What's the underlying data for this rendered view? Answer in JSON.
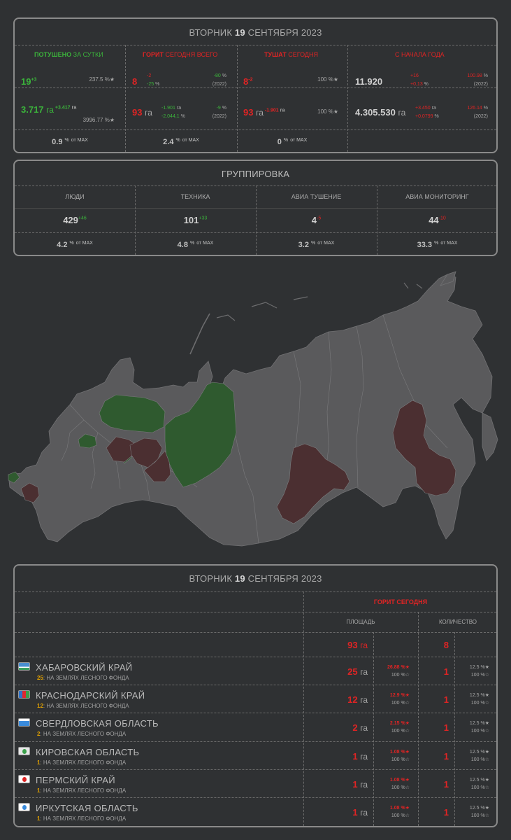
{
  "header": {
    "weekday": "ВТОРНИК",
    "day": "19",
    "month_year": "СЕНТЯБРЯ 2023"
  },
  "summary": {
    "col1": {
      "title_a": "ПОТУШЕНО",
      "title_b": "ЗА СУТКИ"
    },
    "col2": {
      "title_a": "ГОРИТ",
      "title_b": "СЕГОДНЯ ВСЕГО"
    },
    "col3": {
      "title_a": "ТУШАТ",
      "title_b": "СЕГОДНЯ"
    },
    "col4": {
      "title": "С НАЧАЛА ГОДА"
    },
    "extinguished_count": "19",
    "extinguished_count_delta": "+3",
    "extinguished_count_pct": "237.5 %★",
    "extinguished_area": "3.717",
    "extinguished_area_unit": "га",
    "extinguished_area_delta": "+3.417",
    "extinguished_area_delta_unit": "га",
    "extinguished_area_pct": "3996.77 %★",
    "burning_count": "8",
    "burning_count_delta1": "-2",
    "burning_count_delta2": "-25",
    "burning_count_delta2_unit": "%",
    "burning_count_yoy": "-80",
    "burning_count_yoy_unit": "%",
    "burning_count_year": "(2022)",
    "burning_area": "93",
    "burning_area_unit": "га",
    "burning_area_delta1": "-1.901",
    "burning_area_delta1_unit": "га",
    "burning_area_delta2": "-2.044,1",
    "burning_area_delta2_unit": "%",
    "burning_area_yoy": "-9",
    "burning_area_yoy_unit": "%",
    "burning_area_year": "(2022)",
    "fighting_count": "8",
    "fighting_count_delta": "-2",
    "fighting_count_pct": "100 %★",
    "fighting_area": "93",
    "fighting_area_unit": "га",
    "fighting_area_delta": "-1.901",
    "fighting_area_delta_unit": "га",
    "fighting_area_pct": "100 %★",
    "ytd_count": "11.920",
    "ytd_count_delta1": "+16",
    "ytd_count_delta2": "+0,13",
    "ytd_count_delta2_unit": "%",
    "ytd_count_yoy": "100.98",
    "ytd_count_yoy_unit": "%",
    "ytd_count_year": "(2022)",
    "ytd_area": "4.305.530",
    "ytd_area_unit": "га",
    "ytd_area_delta1": "+3.450",
    "ytd_area_delta1_unit": "га",
    "ytd_area_delta2": "+0,0799",
    "ytd_area_delta2_unit": "%",
    "ytd_area_yoy": "126.14",
    "ytd_area_yoy_unit": "%",
    "ytd_area_year": "(2022)",
    "max1": "0.9",
    "max2": "2.4",
    "max3": "0",
    "pct_sign": "%",
    "of_max": "от MAX"
  },
  "grouping": {
    "title": "ГРУППИРОВКА",
    "columns": [
      {
        "label": "ЛЮДИ",
        "value": "429",
        "delta": "+46",
        "max": "4.2"
      },
      {
        "label": "ТЕХНИКА",
        "value": "101",
        "delta": "+33",
        "max": "4.8"
      },
      {
        "label": "АВИА ТУШЕНИЕ",
        "value": "4",
        "delta": "-5",
        "max": "3.2"
      },
      {
        "label": "АВИА МОНИТОРИНГ",
        "value": "44",
        "delta": "-10",
        "max": "33.3"
      }
    ]
  },
  "map": {
    "colors": {
      "background": "#2f3133",
      "base": "#5a5a5c",
      "green": "#2f5a2f",
      "burning": "#4b2f31",
      "border": "#7a7a7c"
    }
  },
  "table": {
    "burning_today": "ГОРИТ СЕГОДНЯ",
    "area_header": "ПЛОЩАДЬ",
    "count_header": "КОЛИЧЕСТВО",
    "total_area": "93",
    "total_count": "8",
    "ha": "га",
    "forest_suffix": ": НА ЗЕМЛЯХ ЛЕСНОГО ФОНДА",
    "rows": [
      {
        "name": "ХАБАРОВСКИЙ КРАЙ",
        "forest": "25",
        "area": "25",
        "area_pct1": "26.88 %★",
        "area_pct2": "100 %☆",
        "count": "1",
        "count_pct1": "12.5 %★",
        "count_pct2": "100 %☆"
      },
      {
        "name": "КРАСНОДАРСКИЙ КРАЙ",
        "forest": "12",
        "area": "12",
        "area_pct1": "12.9 %★",
        "area_pct2": "100 %☆",
        "count": "1",
        "count_pct1": "12.5 %★",
        "count_pct2": "100 %☆"
      },
      {
        "name": "СВЕРДЛОВСКАЯ ОБЛАСТЬ",
        "forest": "2",
        "area": "2",
        "area_pct1": "2.15 %★",
        "area_pct2": "100 %☆",
        "count": "1",
        "count_pct1": "12.5 %★",
        "count_pct2": "100 %☆"
      },
      {
        "name": "КИРОВСКАЯ ОБЛАСТЬ",
        "forest": "1",
        "area": "1",
        "area_pct1": "1.08 %★",
        "area_pct2": "100 %☆",
        "count": "1",
        "count_pct1": "12.5 %★",
        "count_pct2": "100 %☆"
      },
      {
        "name": "ПЕРМСКИЙ КРАЙ",
        "forest": "1",
        "area": "1",
        "area_pct1": "1.08 %★",
        "area_pct2": "100 %☆",
        "count": "1",
        "count_pct1": "12.5 %★",
        "count_pct2": "100 %☆"
      },
      {
        "name": "ИРКУТСКАЯ ОБЛАСТЬ",
        "forest": "1",
        "area": "1",
        "area_pct1": "1.08 %★",
        "area_pct2": "100 %☆",
        "count": "1",
        "count_pct1": "12.5 %★",
        "count_pct2": "100 %☆"
      }
    ]
  }
}
